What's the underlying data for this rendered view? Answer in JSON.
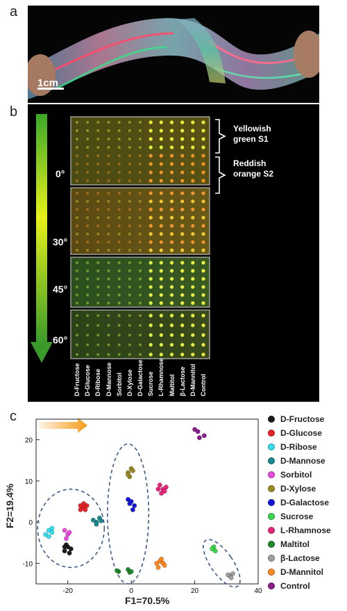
{
  "panels": {
    "a": "a",
    "b": "b",
    "c": "c"
  },
  "panel_a": {
    "scale_bar_label": "1cm"
  },
  "panel_b": {
    "angles": [
      "0°",
      "30°",
      "45°",
      "60°"
    ],
    "annotation_s1": [
      "Yellowish",
      "green S1"
    ],
    "annotation_s2": [
      "Reddish",
      "orange S2"
    ],
    "sugars": [
      "D-Fructose",
      "D-Glucose",
      "D-Ribose",
      "D-Mannose",
      "Sorbitol",
      "D-Xylose",
      "D-Galactose",
      "Sucrose",
      "L-Rhamnose",
      "Maltitol",
      "β-Lactose",
      "D-Mannitol",
      "Control"
    ]
  },
  "chart_data": {
    "type": "scatter",
    "xlabel": "F1=70.5%",
    "ylabel": "F2=19.4%",
    "xlim": [
      -30,
      40
    ],
    "ylim": [
      -15,
      25
    ],
    "xticks": [
      -20,
      0,
      20,
      40
    ],
    "yticks": [
      -10,
      0,
      10,
      20
    ],
    "legend_position": "right",
    "series": [
      {
        "name": "D-Fructose",
        "color": "#1a1a1a",
        "points": [
          [
            -20,
            -6
          ],
          [
            -19,
            -6.5
          ],
          [
            -21,
            -7
          ],
          [
            -20.5,
            -5.5
          ],
          [
            -19.5,
            -7.5
          ],
          [
            -21,
            -6
          ]
        ]
      },
      {
        "name": "D-Glucose",
        "color": "#e8252a",
        "points": [
          [
            -15,
            3.5
          ],
          [
            -14,
            4
          ],
          [
            -16,
            3
          ],
          [
            -15,
            4.5
          ],
          [
            -14.5,
            3
          ],
          [
            -16,
            4
          ]
        ]
      },
      {
        "name": "D-Ribose",
        "color": "#36e0ee",
        "points": [
          [
            -26,
            -2
          ],
          [
            -25,
            -1.5
          ],
          [
            -27,
            -3
          ],
          [
            -26,
            -3.5
          ],
          [
            -25,
            -2.5
          ]
        ]
      },
      {
        "name": "D-Mannose",
        "color": "#1a8a8a",
        "points": [
          [
            -11,
            0
          ],
          [
            -10,
            1
          ],
          [
            -12,
            0.5
          ],
          [
            -11,
            -0.5
          ],
          [
            -9.5,
            0.3
          ]
        ]
      },
      {
        "name": "Sorbitol",
        "color": "#e94be0",
        "points": [
          [
            -20,
            -3
          ],
          [
            -21,
            -2
          ],
          [
            -19.5,
            -2.5
          ],
          [
            -20.5,
            -4
          ]
        ]
      },
      {
        "name": "D-Xylose",
        "color": "#9a8a22",
        "points": [
          [
            -1,
            12
          ],
          [
            0,
            13
          ],
          [
            -0.5,
            11
          ],
          [
            -1,
            11.5
          ],
          [
            0.5,
            12.5
          ]
        ]
      },
      {
        "name": "D-Galactose",
        "color": "#1515d8",
        "points": [
          [
            0,
            5
          ],
          [
            1,
            4
          ],
          [
            -1,
            5.5
          ],
          [
            0.5,
            3
          ],
          [
            -0.5,
            4.5
          ]
        ]
      },
      {
        "name": "Sucrose",
        "color": "#3cd64a",
        "points": [
          [
            26,
            -6
          ],
          [
            26.5,
            -7
          ],
          [
            25.5,
            -6.5
          ]
        ]
      },
      {
        "name": "L-Rhamnose",
        "color": "#e8257a",
        "points": [
          [
            9,
            9
          ],
          [
            10,
            8
          ],
          [
            11,
            8.5
          ],
          [
            9.5,
            7
          ],
          [
            8.5,
            8
          ],
          [
            10.5,
            7.5
          ]
        ]
      },
      {
        "name": "Maltitol",
        "color": "#1e8a2a",
        "points": [
          [
            -4,
            -12
          ],
          [
            -1,
            -11.5
          ],
          [
            -0.5,
            -12.2
          ],
          [
            -4.5,
            -11.8
          ],
          [
            0,
            -12
          ]
        ]
      },
      {
        "name": "β-Lactose",
        "color": "#a0a0a0",
        "points": [
          [
            31,
            -13
          ],
          [
            32,
            -12.5
          ],
          [
            31.5,
            -13.5
          ],
          [
            30.5,
            -12.8
          ]
        ]
      },
      {
        "name": "D-Mannitol",
        "color": "#ff8a1e",
        "points": [
          [
            8,
            -10
          ],
          [
            9,
            -9.5
          ],
          [
            10,
            -10
          ],
          [
            8.5,
            -11
          ],
          [
            9.5,
            -9
          ],
          [
            10.5,
            -10.5
          ]
        ]
      },
      {
        "name": "Control",
        "color": "#8a1e8a",
        "points": [
          [
            21,
            22
          ],
          [
            20,
            22.5
          ],
          [
            23,
            21
          ],
          [
            21.5,
            20.5
          ]
        ]
      }
    ]
  }
}
